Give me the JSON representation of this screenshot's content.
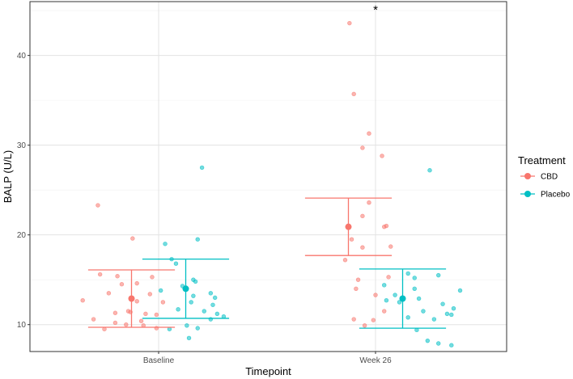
{
  "chart_data": {
    "type": "scatter",
    "xlabel": "Timepoint",
    "ylabel": "BALP (U/L)",
    "categories": [
      "Baseline",
      "Week 26"
    ],
    "ylim": [
      7,
      46
    ],
    "yticks": [
      10,
      20,
      30,
      40
    ],
    "legend_title": "Treatment",
    "legend_position": "right",
    "annotation": "*",
    "annotation_category": "Week 26",
    "annotation_y": 45.2,
    "series": [
      {
        "name": "CBD",
        "color": "#F8766D",
        "summary": [
          {
            "category": "Baseline",
            "mean": 12.9,
            "lower": 9.7,
            "upper": 16.1
          },
          {
            "category": "Week 26",
            "mean": 20.9,
            "lower": 17.7,
            "upper": 24.1
          }
        ],
        "points": [
          {
            "category": "Baseline",
            "y": 23.3,
            "jitter": -0.28
          },
          {
            "category": "Baseline",
            "y": 19.6,
            "jitter": -0.12
          },
          {
            "category": "Baseline",
            "y": 15.6,
            "jitter": -0.27
          },
          {
            "category": "Baseline",
            "y": 15.4,
            "jitter": -0.19
          },
          {
            "category": "Baseline",
            "y": 15.3,
            "jitter": -0.03
          },
          {
            "category": "Baseline",
            "y": 14.6,
            "jitter": -0.1
          },
          {
            "category": "Baseline",
            "y": 14.5,
            "jitter": -0.17
          },
          {
            "category": "Baseline",
            "y": 13.5,
            "jitter": -0.23
          },
          {
            "category": "Baseline",
            "y": 13.4,
            "jitter": -0.04
          },
          {
            "category": "Baseline",
            "y": 12.7,
            "jitter": -0.35
          },
          {
            "category": "Baseline",
            "y": 12.6,
            "jitter": -0.1
          },
          {
            "category": "Baseline",
            "y": 12.5,
            "jitter": 0.02
          },
          {
            "category": "Baseline",
            "y": 11.5,
            "jitter": -0.14
          },
          {
            "category": "Baseline",
            "y": 11.4,
            "jitter": -0.13
          },
          {
            "category": "Baseline",
            "y": 11.3,
            "jitter": -0.2
          },
          {
            "category": "Baseline",
            "y": 11.2,
            "jitter": -0.06
          },
          {
            "category": "Baseline",
            "y": 11.1,
            "jitter": -0.01
          },
          {
            "category": "Baseline",
            "y": 10.6,
            "jitter": -0.3
          },
          {
            "category": "Baseline",
            "y": 10.4,
            "jitter": -0.08
          },
          {
            "category": "Baseline",
            "y": 10.2,
            "jitter": -0.2
          },
          {
            "category": "Baseline",
            "y": 10.0,
            "jitter": -0.15
          },
          {
            "category": "Baseline",
            "y": 9.9,
            "jitter": -0.07
          },
          {
            "category": "Baseline",
            "y": 9.6,
            "jitter": -0.01
          },
          {
            "category": "Baseline",
            "y": 9.5,
            "jitter": -0.25
          },
          {
            "category": "Week 26",
            "y": 43.6,
            "jitter": -0.12
          },
          {
            "category": "Week 26",
            "y": 35.7,
            "jitter": -0.1
          },
          {
            "category": "Week 26",
            "y": 31.3,
            "jitter": -0.03
          },
          {
            "category": "Week 26",
            "y": 29.7,
            "jitter": -0.06
          },
          {
            "category": "Week 26",
            "y": 28.8,
            "jitter": 0.03
          },
          {
            "category": "Week 26",
            "y": 23.6,
            "jitter": -0.03
          },
          {
            "category": "Week 26",
            "y": 22.1,
            "jitter": -0.06
          },
          {
            "category": "Week 26",
            "y": 21.0,
            "jitter": 0.05
          },
          {
            "category": "Week 26",
            "y": 20.9,
            "jitter": 0.04
          },
          {
            "category": "Week 26",
            "y": 19.5,
            "jitter": -0.11
          },
          {
            "category": "Week 26",
            "y": 18.7,
            "jitter": 0.07
          },
          {
            "category": "Week 26",
            "y": 18.6,
            "jitter": -0.06
          },
          {
            "category": "Week 26",
            "y": 17.2,
            "jitter": -0.14
          },
          {
            "category": "Week 26",
            "y": 15.3,
            "jitter": 0.06
          },
          {
            "category": "Week 26",
            "y": 15.0,
            "jitter": -0.08
          },
          {
            "category": "Week 26",
            "y": 14.0,
            "jitter": -0.09
          },
          {
            "category": "Week 26",
            "y": 13.3,
            "jitter": 0.0
          },
          {
            "category": "Week 26",
            "y": 11.5,
            "jitter": 0.04
          },
          {
            "category": "Week 26",
            "y": 10.6,
            "jitter": -0.1
          },
          {
            "category": "Week 26",
            "y": 10.5,
            "jitter": -0.01
          },
          {
            "category": "Week 26",
            "y": 9.9,
            "jitter": -0.05
          }
        ]
      },
      {
        "name": "Placebo",
        "color": "#00BFC4",
        "summary": [
          {
            "category": "Baseline",
            "mean": 14.0,
            "lower": 10.7,
            "upper": 17.3
          },
          {
            "category": "Week 26",
            "mean": 12.9,
            "lower": 9.6,
            "upper": 16.2
          }
        ],
        "points": [
          {
            "category": "Baseline",
            "y": 27.5,
            "jitter": 0.2
          },
          {
            "category": "Baseline",
            "y": 19.5,
            "jitter": 0.18
          },
          {
            "category": "Baseline",
            "y": 19.0,
            "jitter": 0.03
          },
          {
            "category": "Baseline",
            "y": 17.3,
            "jitter": 0.06
          },
          {
            "category": "Baseline",
            "y": 16.8,
            "jitter": 0.08
          },
          {
            "category": "Baseline",
            "y": 15.0,
            "jitter": 0.16
          },
          {
            "category": "Baseline",
            "y": 14.8,
            "jitter": 0.17
          },
          {
            "category": "Baseline",
            "y": 14.3,
            "jitter": 0.11
          },
          {
            "category": "Baseline",
            "y": 13.8,
            "jitter": 0.01
          },
          {
            "category": "Baseline",
            "y": 13.5,
            "jitter": 0.24
          },
          {
            "category": "Baseline",
            "y": 13.2,
            "jitter": 0.16
          },
          {
            "category": "Baseline",
            "y": 13.0,
            "jitter": 0.26
          },
          {
            "category": "Baseline",
            "y": 12.5,
            "jitter": 0.15
          },
          {
            "category": "Baseline",
            "y": 12.2,
            "jitter": 0.25
          },
          {
            "category": "Baseline",
            "y": 11.7,
            "jitter": 0.09
          },
          {
            "category": "Baseline",
            "y": 11.5,
            "jitter": 0.21
          },
          {
            "category": "Baseline",
            "y": 11.2,
            "jitter": 0.27
          },
          {
            "category": "Baseline",
            "y": 10.9,
            "jitter": 0.3
          },
          {
            "category": "Baseline",
            "y": 10.6,
            "jitter": 0.24
          },
          {
            "category": "Baseline",
            "y": 9.9,
            "jitter": 0.13
          },
          {
            "category": "Baseline",
            "y": 9.6,
            "jitter": 0.18
          },
          {
            "category": "Baseline",
            "y": 9.5,
            "jitter": 0.05
          },
          {
            "category": "Baseline",
            "y": 8.5,
            "jitter": 0.14
          },
          {
            "category": "Week 26",
            "y": 27.2,
            "jitter": 0.25
          },
          {
            "category": "Week 26",
            "y": 15.7,
            "jitter": 0.15
          },
          {
            "category": "Week 26",
            "y": 15.5,
            "jitter": 0.29
          },
          {
            "category": "Week 26",
            "y": 15.2,
            "jitter": 0.18
          },
          {
            "category": "Week 26",
            "y": 14.4,
            "jitter": 0.04
          },
          {
            "category": "Week 26",
            "y": 14.0,
            "jitter": 0.18
          },
          {
            "category": "Week 26",
            "y": 13.8,
            "jitter": 0.39
          },
          {
            "category": "Week 26",
            "y": 13.3,
            "jitter": 0.09
          },
          {
            "category": "Week 26",
            "y": 12.9,
            "jitter": 0.2
          },
          {
            "category": "Week 26",
            "y": 12.7,
            "jitter": 0.05
          },
          {
            "category": "Week 26",
            "y": 12.5,
            "jitter": 0.11
          },
          {
            "category": "Week 26",
            "y": 12.3,
            "jitter": 0.31
          },
          {
            "category": "Week 26",
            "y": 11.8,
            "jitter": 0.36
          },
          {
            "category": "Week 26",
            "y": 11.5,
            "jitter": 0.22
          },
          {
            "category": "Week 26",
            "y": 11.2,
            "jitter": 0.33
          },
          {
            "category": "Week 26",
            "y": 11.1,
            "jitter": 0.35
          },
          {
            "category": "Week 26",
            "y": 10.8,
            "jitter": 0.15
          },
          {
            "category": "Week 26",
            "y": 10.6,
            "jitter": 0.27
          },
          {
            "category": "Week 26",
            "y": 9.4,
            "jitter": 0.19
          },
          {
            "category": "Week 26",
            "y": 8.2,
            "jitter": 0.24
          },
          {
            "category": "Week 26",
            "y": 7.9,
            "jitter": 0.29
          },
          {
            "category": "Week 26",
            "y": 7.7,
            "jitter": 0.35
          }
        ]
      }
    ]
  }
}
